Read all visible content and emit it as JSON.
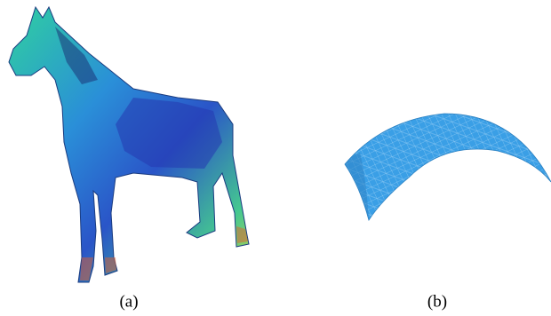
{
  "figure": {
    "panels": [
      {
        "label": "(a)"
      },
      {
        "label": "(b)"
      }
    ]
  }
}
